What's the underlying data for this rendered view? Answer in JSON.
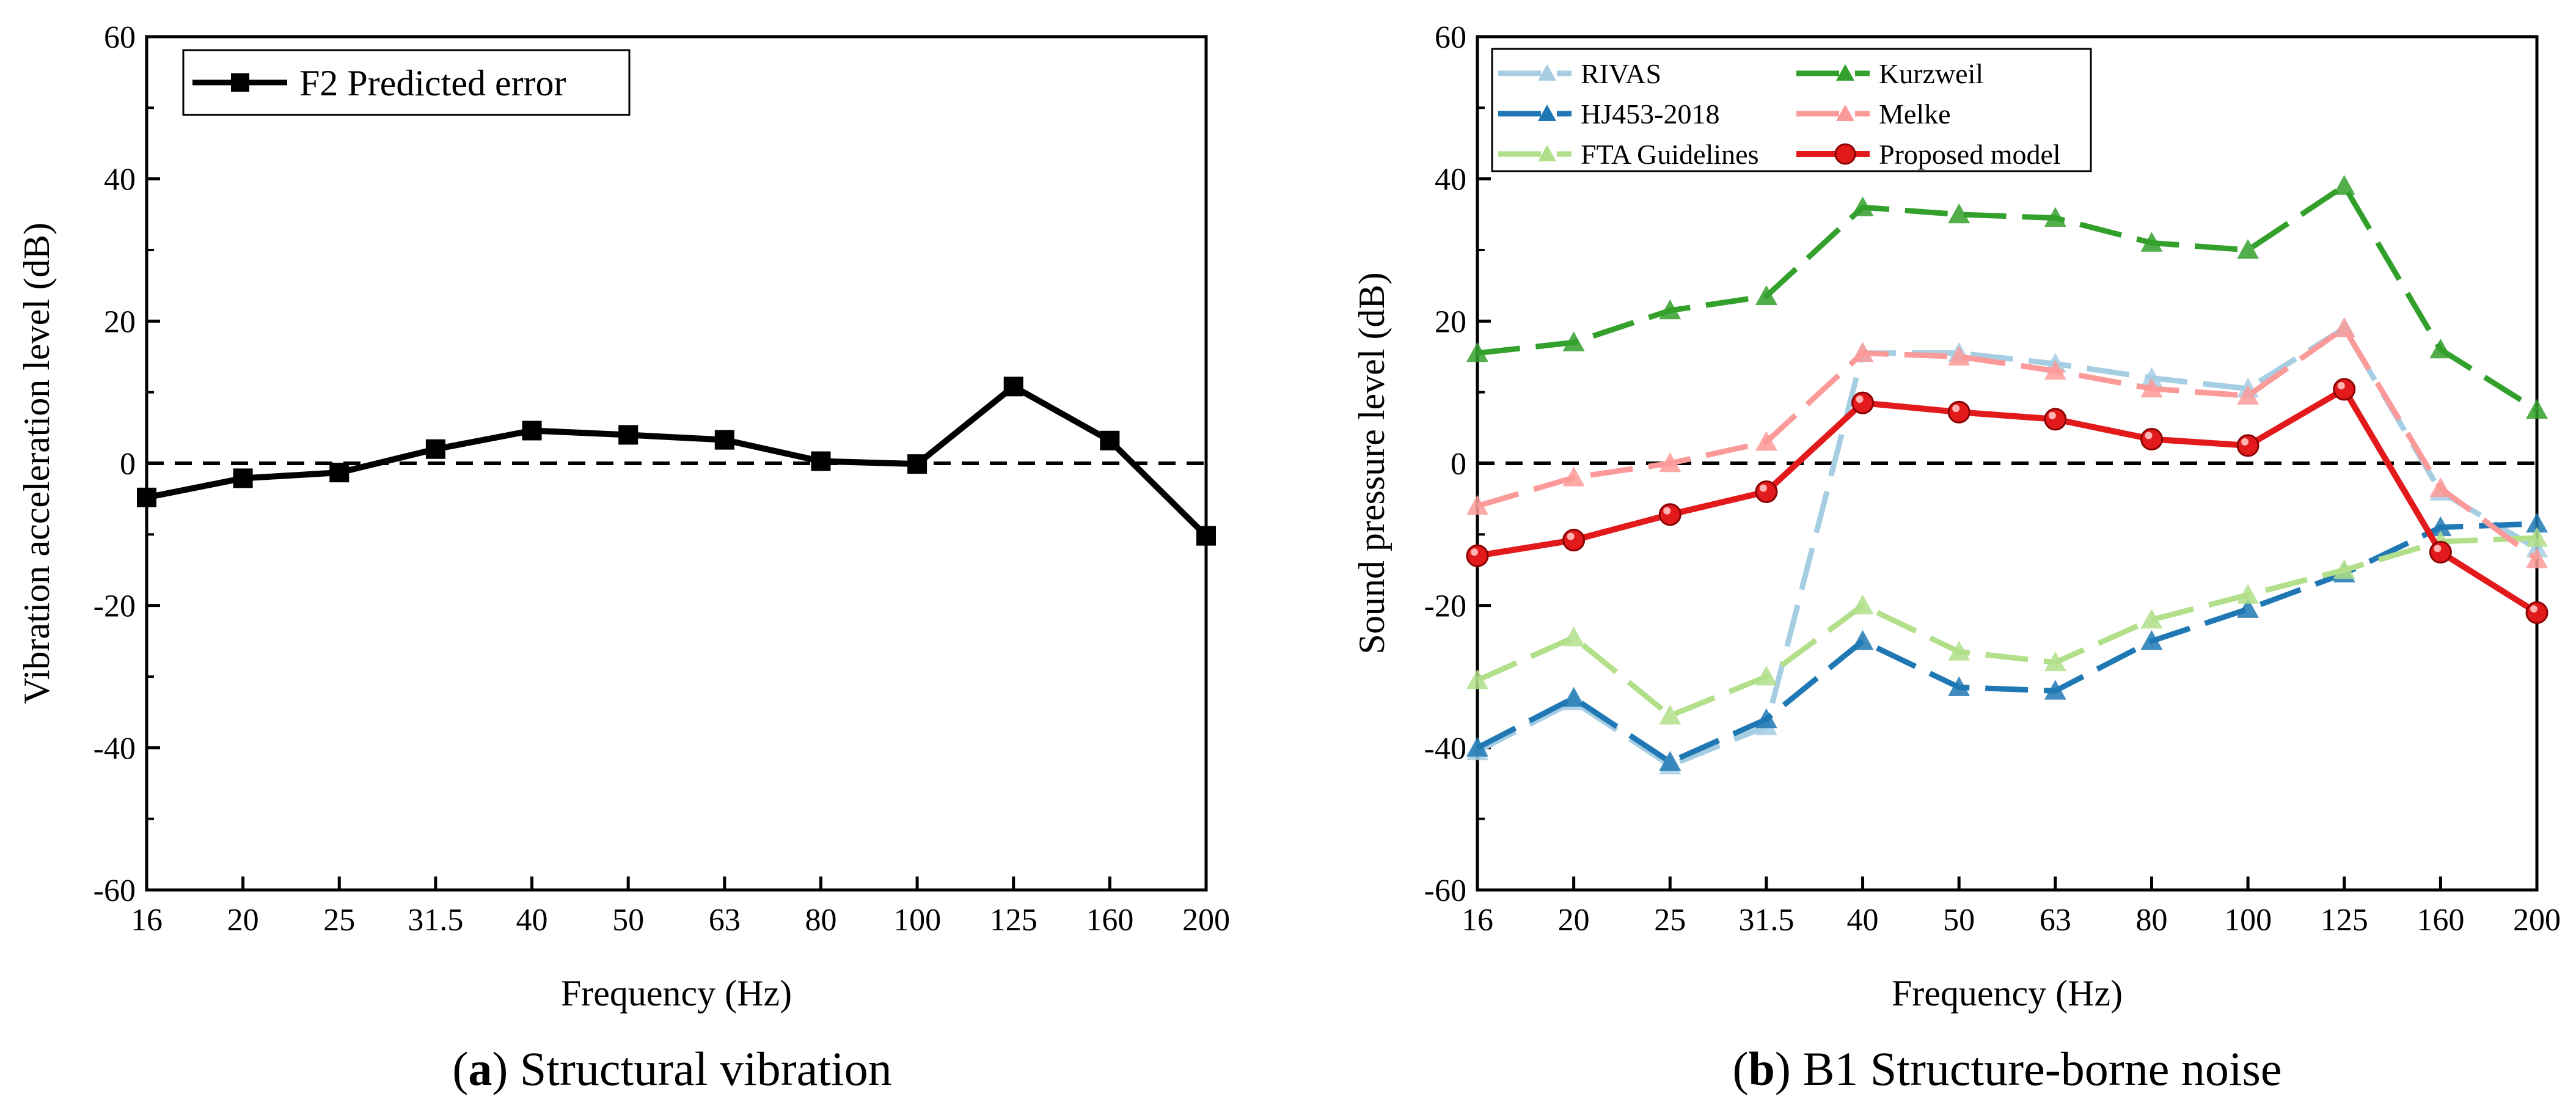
{
  "chart_data": [
    {
      "type": "line",
      "panel_caption_letter": "a",
      "panel_caption_text": " Structural vibration",
      "xlabel": "Frequency (Hz)",
      "ylabel": "Vibration acceleration level (dB)",
      "categories": [
        "16",
        "20",
        "25",
        "31.5",
        "40",
        "50",
        "63",
        "80",
        "100",
        "125",
        "160",
        "200"
      ],
      "ylim": [
        -60,
        60
      ],
      "yticks": [
        -60,
        -40,
        -20,
        0,
        20,
        40,
        60
      ],
      "reference_line": 0,
      "legend_position": "top-left",
      "series": [
        {
          "name": "F2 Predicted error",
          "color": "#000000",
          "marker": "square",
          "values": [
            -4.8,
            -2.1,
            -1.3,
            2.0,
            4.6,
            4.0,
            3.3,
            0.3,
            -0.1,
            10.8,
            3.2,
            -10.2
          ]
        }
      ]
    },
    {
      "type": "line",
      "panel_caption_letter": "b",
      "panel_caption_text": " B1 Structure-borne noise",
      "xlabel": "Frequency (Hz)",
      "ylabel": "Sound pressure level (dB)",
      "categories": [
        "16",
        "20",
        "25",
        "31.5",
        "40",
        "50",
        "63",
        "80",
        "100",
        "125",
        "160",
        "200"
      ],
      "ylim": [
        -60,
        60
      ],
      "yticks": [
        -60,
        -40,
        -20,
        0,
        20,
        40,
        60
      ],
      "reference_line": 0,
      "legend_position": "top-left",
      "series": [
        {
          "name": "RIVAS",
          "color": "#a6cee3",
          "marker": "triangle",
          "dashed": true,
          "values": [
            -40.5,
            -33.5,
            -42.5,
            -37.0,
            15.5,
            15.5,
            14.0,
            12.0,
            10.5,
            19.0,
            -4.0,
            -12.0
          ]
        },
        {
          "name": "HJ453-2018",
          "color": "#1f78b4",
          "marker": "triangle",
          "dashed": true,
          "values": [
            -40.0,
            -33.0,
            -42.0,
            -36.0,
            -25.0,
            -31.5,
            -32.0,
            -25.0,
            -20.5,
            -15.5,
            -9.0,
            -8.5
          ]
        },
        {
          "name": "FTA Guidelines",
          "color": "#b2df8a",
          "marker": "triangle",
          "dashed": true,
          "values": [
            -30.5,
            -24.5,
            -35.5,
            -30.0,
            -20.0,
            -26.5,
            -28.0,
            -22.0,
            -18.5,
            -15.0,
            -11.0,
            -10.5
          ]
        },
        {
          "name": "Kurzweil",
          "color": "#33a02c",
          "marker": "triangle",
          "dashed": true,
          "values": [
            15.5,
            17.0,
            21.5,
            23.5,
            36.0,
            35.0,
            34.5,
            31.0,
            30.0,
            39.0,
            16.0,
            7.5
          ]
        },
        {
          "name": "Melke",
          "color": "#fb9a99",
          "marker": "triangle",
          "dashed": true,
          "values": [
            -6.0,
            -2.0,
            0.0,
            3.0,
            15.5,
            15.0,
            13.0,
            10.5,
            9.5,
            19.0,
            -3.5,
            -13.5
          ]
        },
        {
          "name": "Proposed model",
          "color": "#e31a1c",
          "marker": "circle",
          "dashed": false,
          "values": [
            -13.0,
            -10.8,
            -7.2,
            -4.0,
            8.5,
            7.2,
            6.2,
            3.4,
            2.5,
            10.4,
            -12.5,
            -21.0
          ]
        }
      ]
    }
  ]
}
